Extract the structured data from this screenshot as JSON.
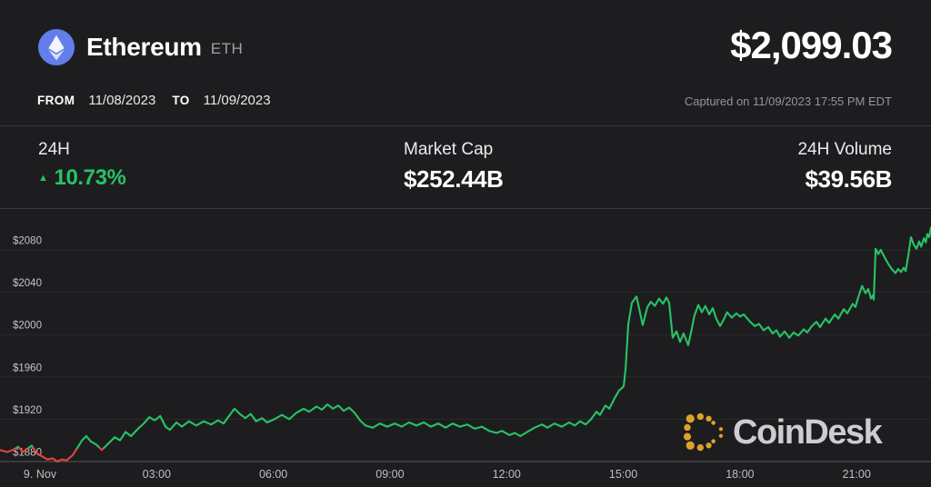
{
  "header": {
    "coin_name": "Ethereum",
    "coin_symbol": "ETH",
    "price": "$2,099.03",
    "from_label": "FROM",
    "from_date": "11/08/2023",
    "to_label": "TO",
    "to_date": "11/09/2023",
    "captured": "Captured on 11/09/2023 17:55 PM EDT"
  },
  "stats": {
    "change_label": "24H",
    "change_value": "10.73%",
    "change_direction": "up",
    "market_cap_label": "Market Cap",
    "market_cap_value": "$252.44B",
    "volume_label": "24H Volume",
    "volume_value": "$39.56B"
  },
  "watermark": {
    "brand": "CoinDesk"
  },
  "colors": {
    "background": "#1D1D1F",
    "up_green": "#26C466",
    "down_red": "#E1443C",
    "eth_blue": "#627EEA",
    "coindesk_gold": "#DCA32B",
    "grid": "#2B2B2E",
    "axis": "#45454A",
    "tick_text": "#C4C4C7"
  },
  "chart_data": {
    "type": "line",
    "grid": true,
    "legend": false,
    "y_axis": {
      "min": 1880,
      "max": 2080,
      "tick_step": 40,
      "tick_prefix": "$"
    },
    "y_tick_labels": [
      "$1880",
      "$1920",
      "$1960",
      "$2000",
      "$2040",
      "$2080"
    ],
    "x_ticks": [
      {
        "hour": 0,
        "label": "9. Nov"
      },
      {
        "hour": 3,
        "label": "03:00"
      },
      {
        "hour": 6,
        "label": "06:00"
      },
      {
        "hour": 9,
        "label": "09:00"
      },
      {
        "hour": 12,
        "label": "12:00"
      },
      {
        "hour": 15,
        "label": "15:00"
      },
      {
        "hour": 18,
        "label": "18:00"
      },
      {
        "hour": 21,
        "label": "21:00"
      }
    ],
    "open_price_approx": 1893,
    "points": [
      [
        -1.03,
        1891
      ],
      [
        -0.84,
        1889
      ],
      [
        -0.7,
        1891
      ],
      [
        -0.56,
        1894
      ],
      [
        -0.44,
        1889
      ],
      [
        -0.33,
        1892
      ],
      [
        -0.21,
        1895
      ],
      [
        -0.09,
        1888
      ],
      [
        0.05,
        1885
      ],
      [
        0.19,
        1882
      ],
      [
        0.33,
        1883
      ],
      [
        0.44,
        1880
      ],
      [
        0.56,
        1882
      ],
      [
        0.68,
        1881
      ],
      [
        0.84,
        1886
      ],
      [
        0.96,
        1893
      ],
      [
        1.08,
        1900
      ],
      [
        1.19,
        1904
      ],
      [
        1.31,
        1899
      ],
      [
        1.45,
        1896
      ],
      [
        1.59,
        1891
      ],
      [
        1.73,
        1896
      ],
      [
        1.92,
        1903
      ],
      [
        2.06,
        1900
      ],
      [
        2.2,
        1908
      ],
      [
        2.34,
        1904
      ],
      [
        2.52,
        1911
      ],
      [
        2.67,
        1916
      ],
      [
        2.81,
        1922
      ],
      [
        2.95,
        1919
      ],
      [
        3.09,
        1923
      ],
      [
        3.23,
        1913
      ],
      [
        3.34,
        1910
      ],
      [
        3.51,
        1917
      ],
      [
        3.65,
        1913
      ],
      [
        3.83,
        1918
      ],
      [
        4.02,
        1914
      ],
      [
        4.21,
        1918
      ],
      [
        4.4,
        1915
      ],
      [
        4.58,
        1919
      ],
      [
        4.72,
        1916
      ],
      [
        4.86,
        1923
      ],
      [
        5.0,
        1930
      ],
      [
        5.14,
        1925
      ],
      [
        5.28,
        1921
      ],
      [
        5.42,
        1925
      ],
      [
        5.56,
        1918
      ],
      [
        5.71,
        1921
      ],
      [
        5.84,
        1917
      ],
      [
        6.03,
        1920
      ],
      [
        6.22,
        1924
      ],
      [
        6.41,
        1920
      ],
      [
        6.59,
        1926
      ],
      [
        6.78,
        1930
      ],
      [
        6.92,
        1927
      ],
      [
        7.11,
        1932
      ],
      [
        7.25,
        1929
      ],
      [
        7.39,
        1934
      ],
      [
        7.53,
        1930
      ],
      [
        7.67,
        1933
      ],
      [
        7.81,
        1928
      ],
      [
        7.95,
        1931
      ],
      [
        8.09,
        1926
      ],
      [
        8.23,
        1919
      ],
      [
        8.37,
        1914
      ],
      [
        8.56,
        1912
      ],
      [
        8.74,
        1916
      ],
      [
        8.93,
        1913
      ],
      [
        9.12,
        1916
      ],
      [
        9.3,
        1913
      ],
      [
        9.49,
        1917
      ],
      [
        9.68,
        1914
      ],
      [
        9.87,
        1917
      ],
      [
        10.05,
        1913
      ],
      [
        10.24,
        1916
      ],
      [
        10.43,
        1912
      ],
      [
        10.61,
        1916
      ],
      [
        10.8,
        1913
      ],
      [
        10.99,
        1915
      ],
      [
        11.18,
        1911
      ],
      [
        11.36,
        1913
      ],
      [
        11.55,
        1909
      ],
      [
        11.74,
        1907
      ],
      [
        11.88,
        1909
      ],
      [
        12.07,
        1905
      ],
      [
        12.21,
        1907
      ],
      [
        12.35,
        1904
      ],
      [
        12.53,
        1908
      ],
      [
        12.72,
        1912
      ],
      [
        12.91,
        1915
      ],
      [
        13.05,
        1912
      ],
      [
        13.23,
        1916
      ],
      [
        13.42,
        1913
      ],
      [
        13.61,
        1917
      ],
      [
        13.75,
        1914
      ],
      [
        13.89,
        1918
      ],
      [
        14.03,
        1915
      ],
      [
        14.17,
        1920
      ],
      [
        14.31,
        1927
      ],
      [
        14.4,
        1924
      ],
      [
        14.54,
        1933
      ],
      [
        14.64,
        1930
      ],
      [
        14.78,
        1940
      ],
      [
        14.89,
        1947
      ],
      [
        15.01,
        1951
      ],
      [
        15.06,
        1968
      ],
      [
        15.13,
        2010
      ],
      [
        15.22,
        2030
      ],
      [
        15.34,
        2036
      ],
      [
        15.5,
        2009
      ],
      [
        15.62,
        2026
      ],
      [
        15.71,
        2031
      ],
      [
        15.81,
        2027
      ],
      [
        15.92,
        2034
      ],
      [
        16.02,
        2029
      ],
      [
        16.11,
        2035
      ],
      [
        16.18,
        2030
      ],
      [
        16.27,
        1997
      ],
      [
        16.37,
        2003
      ],
      [
        16.46,
        1993
      ],
      [
        16.55,
        2001
      ],
      [
        16.67,
        1990
      ],
      [
        16.76,
        2005
      ],
      [
        16.83,
        2018
      ],
      [
        16.93,
        2028
      ],
      [
        17.02,
        2021
      ],
      [
        17.11,
        2027
      ],
      [
        17.21,
        2019
      ],
      [
        17.3,
        2025
      ],
      [
        17.39,
        2015
      ],
      [
        17.49,
        2008
      ],
      [
        17.58,
        2014
      ],
      [
        17.67,
        2021
      ],
      [
        17.79,
        2016
      ],
      [
        17.91,
        2020
      ],
      [
        18.0,
        2017
      ],
      [
        18.1,
        2019
      ],
      [
        18.24,
        2013
      ],
      [
        18.38,
        2008
      ],
      [
        18.49,
        2010
      ],
      [
        18.61,
        2004
      ],
      [
        18.73,
        2007
      ],
      [
        18.84,
        2001
      ],
      [
        18.94,
        2004
      ],
      [
        19.03,
        1998
      ],
      [
        19.15,
        2003
      ],
      [
        19.27,
        1997
      ],
      [
        19.38,
        2002
      ],
      [
        19.5,
        1999
      ],
      [
        19.64,
        2005
      ],
      [
        19.73,
        2002
      ],
      [
        19.85,
        2008
      ],
      [
        19.97,
        2012
      ],
      [
        20.06,
        2007
      ],
      [
        20.2,
        2015
      ],
      [
        20.29,
        2011
      ],
      [
        20.44,
        2019
      ],
      [
        20.53,
        2015
      ],
      [
        20.67,
        2024
      ],
      [
        20.76,
        2020
      ],
      [
        20.9,
        2029
      ],
      [
        20.97,
        2026
      ],
      [
        21.04,
        2035
      ],
      [
        21.14,
        2046
      ],
      [
        21.23,
        2039
      ],
      [
        21.3,
        2043
      ],
      [
        21.37,
        2034
      ],
      [
        21.42,
        2037
      ],
      [
        21.44,
        2033
      ],
      [
        21.49,
        2081
      ],
      [
        21.56,
        2076
      ],
      [
        21.62,
        2080
      ],
      [
        21.72,
        2073
      ],
      [
        21.81,
        2067
      ],
      [
        21.9,
        2062
      ],
      [
        22.0,
        2058
      ],
      [
        22.07,
        2062
      ],
      [
        22.14,
        2059
      ],
      [
        22.21,
        2063
      ],
      [
        22.26,
        2060
      ],
      [
        22.33,
        2075
      ],
      [
        22.4,
        2092
      ],
      [
        22.47,
        2085
      ],
      [
        22.54,
        2081
      ],
      [
        22.61,
        2088
      ],
      [
        22.66,
        2083
      ],
      [
        22.73,
        2091
      ],
      [
        22.78,
        2087
      ],
      [
        22.82,
        2095
      ],
      [
        22.87,
        2092
      ],
      [
        22.91,
        2101
      ]
    ]
  }
}
